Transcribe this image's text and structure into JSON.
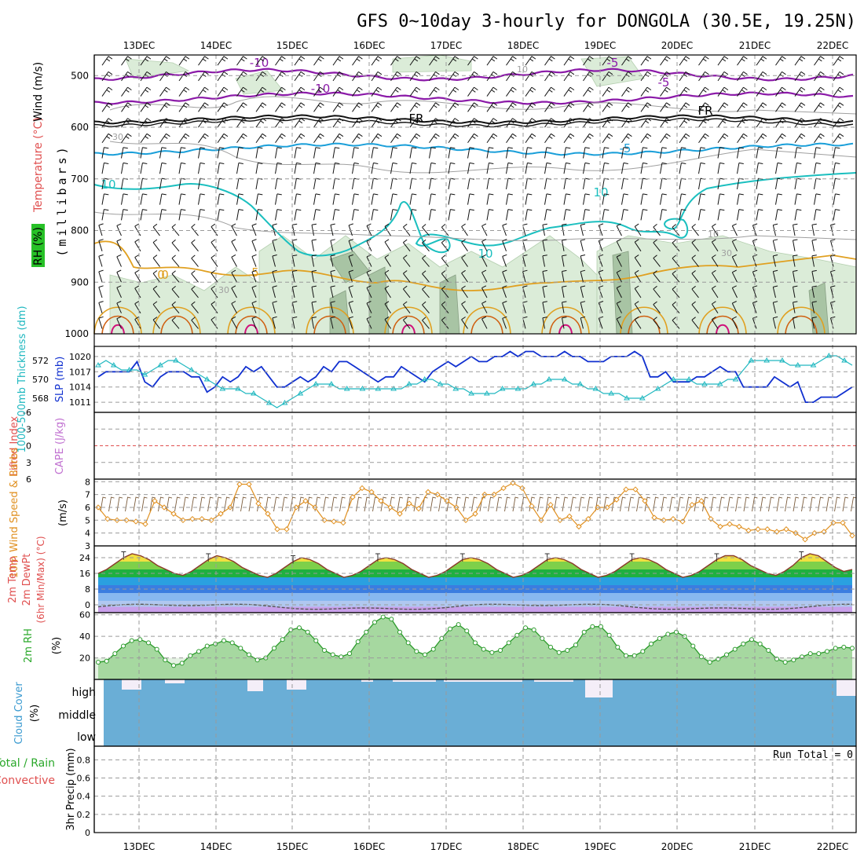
{
  "title": "GFS 0~10day 3-hourly for DONGOLA (30.5E, 19.25N)",
  "dates": [
    "13DEC",
    "14DEC",
    "15DEC",
    "16DEC",
    "17DEC",
    "18DEC",
    "19DEC",
    "20DEC",
    "21DEC",
    "22DEC"
  ],
  "run_total": "Run Total = 0",
  "colors": {
    "grid": "#9a9a9a",
    "rh_green": "#d9ead7",
    "wind": "#111111",
    "temp_purple": "#8b1aa8",
    "temp_blue": "#1a9fd9",
    "temp_cyan": "#1bbfbf",
    "temp_orange": "#e0a020",
    "temp_dark_orange": "#d06010",
    "temp_magenta": "#d0107a",
    "slp": "#1030d0",
    "thick": "#20b8c0",
    "wind10": "#e09020",
    "cloud": "#6aaed6",
    "cape": "#e05050"
  },
  "panels": {
    "upper": {
      "ylabel_rh": "RH (%)",
      "ylabel_temp": "Temperature (°C)",
      "ylabel_wind": "Wind (m/s)",
      "ylabel_mb": "(millibars)",
      "ticks": [
        "500",
        "600",
        "700",
        "800",
        "900",
        "1000"
      ],
      "contour_labels": [
        "-10",
        "-5",
        "-10",
        "-5",
        "FR",
        "FR",
        "-5",
        "10",
        "10",
        "10",
        "30",
        "30",
        "10",
        "10",
        "30",
        "0",
        "5",
        "0"
      ]
    },
    "slp": {
      "ylabel_thick": "1000-500mb Thickness (dm)",
      "ylabel_slp": "SLP (mb)",
      "ticks_left": [
        "572",
        "570",
        "568"
      ],
      "ticks_right": [
        "1020",
        "1017",
        "1014",
        "1011"
      ]
    },
    "li": {
      "ylabel_li": "Lifted Index",
      "ylabel_cape": "CAPE (J/kg)",
      "ticks": [
        "-6",
        "-3",
        "0",
        "3",
        "6"
      ]
    },
    "wind10": {
      "ylabel": "10m Wind Speed & Barbs",
      "unit": "(m/s)",
      "ticks": [
        "8",
        "7",
        "6",
        "5",
        "4",
        "3"
      ]
    },
    "temp2m": {
      "ylabel1": "2m Temp",
      "ylabel2": "2m DewPt",
      "ylabel3": "(6hr Min/Max) (°C)",
      "ticks": [
        "24",
        "16",
        "8",
        "0"
      ]
    },
    "rh2m": {
      "ylabel": "2m RH",
      "unit": "(%)",
      "ticks": [
        "60",
        "40",
        "20"
      ]
    },
    "cloud": {
      "ylabel": "Cloud Cover",
      "unit": "(%)",
      "levels": [
        "high",
        "middle",
        "low"
      ]
    },
    "precip": {
      "ylabel1": "3hr Precip (mm)",
      "ylabel_total": "Total / Rain",
      "ylabel_conv": "Convective",
      "ticks": [
        "0.8",
        "0.6",
        "0.4",
        "0.2",
        "0"
      ]
    }
  },
  "chart_data": [
    {
      "type": "line",
      "title": "1000-500mb Thickness and SLP",
      "series": [
        {
          "name": "SLP (mb)",
          "values": [
            1016,
            1017,
            1017,
            1017,
            1017,
            1019,
            1015,
            1014,
            1016,
            1017,
            1017,
            1017,
            1016,
            1016,
            1013,
            1014,
            1016,
            1015,
            1016,
            1018,
            1017,
            1018,
            1016,
            1014,
            1014,
            1015,
            1016,
            1015,
            1016,
            1018,
            1017,
            1019,
            1019,
            1018,
            1017,
            1016,
            1015,
            1016,
            1016,
            1018,
            1017,
            1016,
            1015,
            1017,
            1018,
            1019,
            1018,
            1019,
            1020,
            1019,
            1019,
            1020,
            1020,
            1021,
            1020,
            1021,
            1021,
            1020,
            1020,
            1020,
            1021,
            1020,
            1020,
            1019,
            1019,
            1019,
            1020,
            1020,
            1020,
            1021,
            1020,
            1016,
            1016,
            1017,
            1015,
            1015,
            1015,
            1016,
            1016,
            1017,
            1018,
            1017,
            1017,
            1014,
            1014,
            1014,
            1014,
            1016,
            1015,
            1014,
            1015,
            1011,
            1011,
            1012,
            1012,
            1012,
            1013,
            1014
          ]
        },
        {
          "name": "1000-500mb Thickness (dm)",
          "values": [
            571.5,
            572,
            571.5,
            571,
            571,
            571,
            570.5,
            571,
            571.5,
            572,
            572,
            571.5,
            571,
            570.5,
            570,
            569.5,
            569,
            569,
            569,
            568.5,
            568.5,
            568,
            567.5,
            567,
            567.5,
            568,
            568.5,
            569,
            569.5,
            569.5,
            569.5,
            569,
            569,
            569,
            569,
            569,
            569,
            569,
            569,
            569,
            569.5,
            569.5,
            570,
            570,
            569.5,
            569.5,
            569,
            569,
            568.5,
            568.5,
            568.5,
            568.5,
            569,
            569,
            569,
            569,
            569.5,
            569.5,
            570,
            570,
            570,
            569.5,
            569.5,
            569,
            569,
            568.5,
            568.5,
            568.5,
            568,
            568,
            568,
            568.5,
            569,
            569.5,
            570,
            570,
            570,
            569.5,
            569.5,
            569.5,
            569.5,
            570,
            570,
            571,
            572,
            572,
            572,
            572,
            572,
            571.5,
            571.5,
            571.5,
            571.5,
            572,
            572.5,
            572.5,
            572,
            571.5
          ]
        }
      ]
    },
    {
      "type": "line",
      "title": "10m Wind Speed",
      "values": [
        6,
        5.1,
        5,
        5,
        4.9,
        4.7,
        6.5,
        6,
        5.5,
        5,
        5.1,
        5.1,
        5,
        5.5,
        6,
        7.8,
        7.8,
        6.3,
        5.5,
        4.3,
        4.3,
        6,
        6.5,
        6,
        5,
        4.9,
        4.8,
        6.8,
        7.5,
        7.2,
        6.5,
        6,
        5.5,
        6.3,
        5.9,
        7.2,
        7,
        6.5,
        6,
        5,
        5.5,
        7,
        7,
        7.5,
        7.9,
        7.5,
        6.1,
        5,
        6.2,
        5,
        5.3,
        4.5,
        5.1,
        6,
        6,
        6.6,
        7.4,
        7.4,
        6.5,
        5.2,
        5,
        5.1,
        4.9,
        6.2,
        6.5,
        5.1,
        4.5,
        4.7,
        4.5,
        4.2,
        4.3,
        4.3,
        4.1,
        4.3,
        4,
        3.5,
        4,
        4.1,
        4.8,
        4.8,
        3.8
      ]
    },
    {
      "type": "area",
      "title": "2m Temp",
      "values": [
        16,
        18,
        21,
        24,
        26,
        25,
        23,
        20,
        18,
        16,
        15,
        17,
        20,
        23,
        25,
        24,
        22,
        19,
        17,
        15,
        14,
        16,
        19,
        22,
        24,
        23,
        21,
        18,
        16,
        14,
        15,
        17,
        20,
        23,
        24,
        23,
        21,
        18,
        16,
        14,
        15,
        17,
        20,
        23,
        24,
        23,
        21,
        18,
        16,
        14,
        15,
        17,
        20,
        23,
        24,
        23,
        21,
        18,
        16,
        14,
        15,
        17,
        20,
        23,
        24,
        23,
        21,
        18,
        16,
        14,
        15,
        17,
        20,
        23,
        25,
        25,
        23,
        20,
        18,
        16,
        15,
        17,
        20,
        24,
        26,
        25,
        22,
        19,
        17,
        18
      ]
    },
    {
      "type": "area",
      "title": "2m RH",
      "values": [
        16,
        17,
        24,
        31,
        36,
        37,
        34,
        28,
        18,
        13,
        15,
        22,
        26,
        31,
        33,
        36,
        34,
        29,
        23,
        18,
        20,
        29,
        37,
        46,
        48,
        44,
        36,
        27,
        23,
        21,
        24,
        35,
        44,
        53,
        58,
        56,
        44,
        34,
        26,
        23,
        28,
        38,
        47,
        51,
        45,
        34,
        28,
        25,
        27,
        34,
        41,
        48,
        46,
        38,
        30,
        25,
        27,
        32,
        44,
        49,
        49,
        41,
        30,
        22,
        22,
        26,
        33,
        38,
        42,
        44,
        40,
        31,
        21,
        16,
        19,
        23,
        28,
        33,
        37,
        33,
        27,
        19,
        16,
        18,
        21,
        24,
        24,
        26,
        29,
        30,
        29
      ]
    }
  ]
}
